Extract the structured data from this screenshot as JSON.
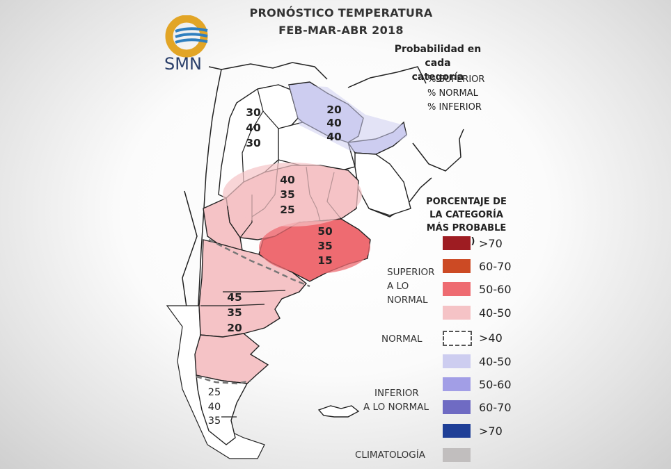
{
  "header": {
    "title_line1": "PRONÓSTICO TEMPERATURA",
    "title_line2": "FEB-MAR-ABR 2018"
  },
  "logo": {
    "text": "SMN",
    "icon": "smn-logo-icon"
  },
  "probability_key": {
    "title_line1": "Probabilidad en cada",
    "title_line2": "categoría",
    "lines": [
      "% SUPERIOR",
      "% NORMAL",
      "% INFERIOR"
    ]
  },
  "regions": [
    {
      "name": "noa",
      "superior": "30",
      "normal": "40",
      "inferior": "30",
      "category": "climatologia"
    },
    {
      "name": "nea",
      "superior": "20",
      "normal": "40",
      "inferior": "40",
      "category": "inferior-40-50"
    },
    {
      "name": "centro",
      "superior": "40",
      "normal": "35",
      "inferior": "25",
      "category": "superior-40-50"
    },
    {
      "name": "buenos-aires",
      "superior": "50",
      "normal": "35",
      "inferior": "15",
      "category": "superior-50-60"
    },
    {
      "name": "patagonia-norte",
      "superior": "45",
      "normal": "35",
      "inferior": "20",
      "category": "superior-40-50"
    },
    {
      "name": "patagonia-sur",
      "superior": "25",
      "normal": "40",
      "inferior": "35",
      "category": "climatologia"
    }
  ],
  "legend": {
    "title_line1": "PORCENTAJE DE",
    "title_line2": "LA CATEGORÍA",
    "title_line3": "MÁS PROBABLE (%)",
    "superior_label_line1": "SUPERIOR",
    "superior_label_line2": "A LO NORMAL",
    "normal_label": "NORMAL",
    "inferior_label_line1": "INFERIOR",
    "inferior_label_line2": "A LO NORMAL",
    "climatologia_label": "CLIMATOLOGÍA",
    "items": [
      {
        "label": ">70",
        "color": "#9e1c22",
        "group": "superior"
      },
      {
        "label": "60-70",
        "color": "#cc4a24",
        "group": "superior"
      },
      {
        "label": "50-60",
        "color": "#ee6b71",
        "group": "superior"
      },
      {
        "label": "40-50",
        "color": "#f5c3c6",
        "group": "superior"
      },
      {
        "label": ">40",
        "color": "dashed",
        "group": "normal"
      },
      {
        "label": "40-50",
        "color": "#cdcdf0",
        "group": "inferior"
      },
      {
        "label": "50-60",
        "color": "#a29ee6",
        "group": "inferior"
      },
      {
        "label": "60-70",
        "color": "#6f6bc3",
        "group": "inferior"
      },
      {
        "label": ">70",
        "color": "#1f3f97",
        "group": "inferior"
      },
      {
        "label": "",
        "color": "#c1bebe",
        "group": "climatologia"
      }
    ]
  },
  "colors": {
    "superior_40_50": "#f5c3c6",
    "superior_50_60": "#ee6b71",
    "inferior_40_50": "#cdcdf0",
    "border": "#222222",
    "normal_dash": "#777777"
  }
}
